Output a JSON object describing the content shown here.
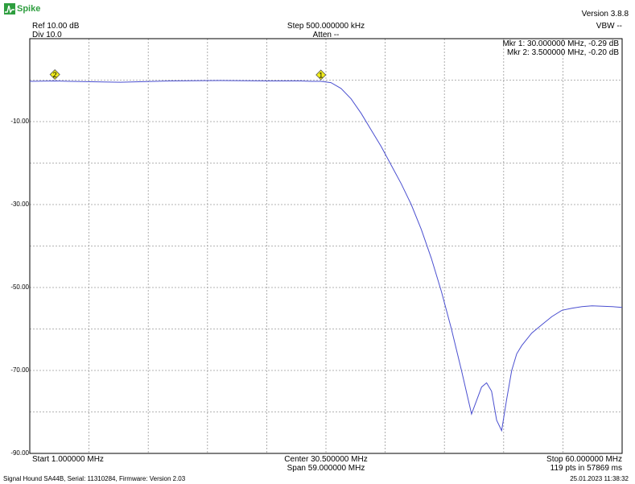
{
  "app": {
    "logo_text": "Spike",
    "version": "Version 3.8.8"
  },
  "header": {
    "ref": "Ref 10.00 dB",
    "div": "Div 10.0",
    "step": "Step 500.000000 kHz",
    "atten": "Atten --",
    "vbw": "VBW --",
    "markers": [
      "Mkr 1: 30.000000 MHz, -0.29 dB",
      "Mkr 2: 3.500000 MHz, -0.20 dB"
    ]
  },
  "footer": {
    "start": "Start 1.000000 MHz",
    "center": "Center 30.500000 MHz",
    "span": "Span 59.000000 MHz",
    "stop": "Stop 60.000000 MHz",
    "points": "119 pts in 57869 ms"
  },
  "status_bar": {
    "device": "Signal Hound SA44B, Serial: 11310284, Firmware: Version 2.03",
    "timestamp": "25.01.2023 11:38:32"
  },
  "colors": {
    "trace": "#4a4fd0",
    "grid": "#9a9a9a",
    "marker_fill": "#f0ec1c"
  },
  "chart_data": {
    "type": "line",
    "xlim": [
      1,
      60
    ],
    "ylim": [
      -90,
      10
    ],
    "x_unit": "MHz",
    "y_unit": "dB",
    "grid": true,
    "y_tick_labels": [
      "-10.00",
      "-30.00",
      "-50.00",
      "-70.00",
      "-90.00"
    ],
    "y_tick_values": [
      -10,
      -30,
      -50,
      -70,
      -90
    ],
    "series": [
      {
        "x": [
          1,
          3.5,
          5,
          10,
          15,
          20,
          25,
          28,
          29,
          30,
          31,
          32,
          33,
          34,
          35,
          36,
          37,
          38,
          39,
          40,
          41,
          42,
          43,
          44,
          45,
          46,
          46.5,
          47,
          47.5,
          48,
          48.5,
          49,
          49.5,
          50,
          51,
          52,
          53,
          54,
          55,
          56,
          57,
          58,
          59,
          60
        ],
        "y": [
          -0.3,
          -0.2,
          -0.3,
          -0.5,
          -0.2,
          -0.1,
          -0.2,
          -0.2,
          -0.3,
          -0.29,
          -0.6,
          -2,
          -4.5,
          -8,
          -12,
          -16,
          -20.5,
          -25,
          -30,
          -36,
          -43,
          -51,
          -60,
          -70,
          -80.5,
          -74,
          -73,
          -75,
          -82,
          -84.5,
          -77,
          -70,
          -66,
          -64,
          -61,
          -59,
          -57,
          -55.5,
          -55,
          -54.6,
          -54.4,
          -54.5,
          -54.6,
          -54.8
        ]
      }
    ],
    "markers": [
      {
        "label": "1",
        "x": 30,
        "y": -0.29
      },
      {
        "label": "2",
        "x": 3.5,
        "y": -0.2
      }
    ]
  }
}
